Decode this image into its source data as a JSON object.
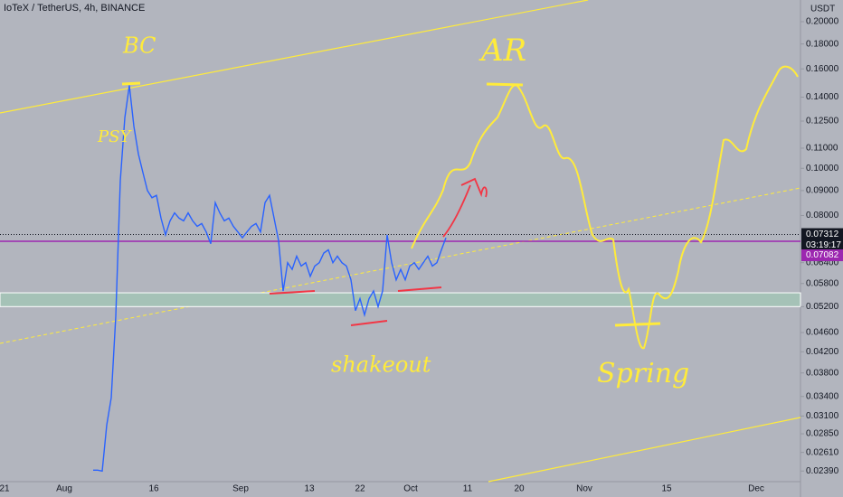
{
  "chart_data": {
    "type": "line",
    "title": "IoTeX / TetherUS, 4h, BINANCE",
    "axis_unit": "USDT",
    "log_scale": true,
    "color": "#2962ff",
    "values": [
      0.024,
      0.024,
      0.0239,
      0.0297,
      0.0338,
      0.0497,
      0.0943,
      0.127,
      0.148,
      0.122,
      0.107,
      0.098,
      0.09,
      0.087,
      0.088,
      0.079,
      0.073,
      0.078,
      0.081,
      0.079,
      0.078,
      0.081,
      0.078,
      0.076,
      0.077,
      0.074,
      0.07,
      0.085,
      0.081,
      0.078,
      0.079,
      0.076,
      0.074,
      0.072,
      0.074,
      0.076,
      0.077,
      0.074,
      0.085,
      0.088,
      0.079,
      0.071,
      0.056,
      0.064,
      0.062,
      0.066,
      0.063,
      0.064,
      0.06,
      0.063,
      0.064,
      0.067,
      0.068,
      0.064,
      0.066,
      0.064,
      0.063,
      0.059,
      0.051,
      0.054,
      0.05,
      0.054,
      0.056,
      0.052,
      0.056,
      0.073,
      0.064,
      0.059,
      0.062,
      0.059,
      0.063,
      0.064,
      0.062,
      0.064,
      0.066,
      0.063,
      0.064,
      0.068,
      0.072
    ],
    "ylim": [
      0.02273,
      0.2216
    ],
    "yticks": [
      {
        "value": 0.2,
        "label": "0.20000"
      },
      {
        "value": 0.18,
        "label": "0.18000"
      },
      {
        "value": 0.16,
        "label": "0.16000"
      },
      {
        "value": 0.14,
        "label": "0.14000"
      },
      {
        "value": 0.125,
        "label": "0.12500"
      },
      {
        "value": 0.11,
        "label": "0.11000"
      },
      {
        "value": 0.1,
        "label": "0.10000"
      },
      {
        "value": 0.09,
        "label": "0.09000"
      },
      {
        "value": 0.08,
        "label": "0.08000"
      },
      {
        "value": 0.064,
        "label": "0.06400"
      },
      {
        "value": 0.058,
        "label": "0.05800"
      },
      {
        "value": 0.052,
        "label": "0.05200"
      },
      {
        "value": 0.046,
        "label": "0.04600"
      },
      {
        "value": 0.042,
        "label": "0.04200"
      },
      {
        "value": 0.038,
        "label": "0.03800"
      },
      {
        "value": 0.034,
        "label": "0.03400"
      },
      {
        "value": 0.031,
        "label": "0.03100"
      },
      {
        "value": 0.0285,
        "label": "0.02850"
      },
      {
        "value": 0.0261,
        "label": "0.02610"
      },
      {
        "value": 0.0239,
        "label": "0.02390"
      }
    ],
    "x_labels": [
      "21",
      "Aug",
      "16",
      "Sep",
      "13",
      "22",
      "Oct",
      "11",
      "20",
      "Nov",
      "15",
      "Dec"
    ],
    "last_price": 0.07312,
    "countdown": "03:19:17",
    "level_price": 0.07082,
    "support_zone": [
      0.0555,
      0.052
    ],
    "annotations": [
      "BC",
      "PSY",
      "AR",
      "shakeout",
      "Spring"
    ]
  }
}
